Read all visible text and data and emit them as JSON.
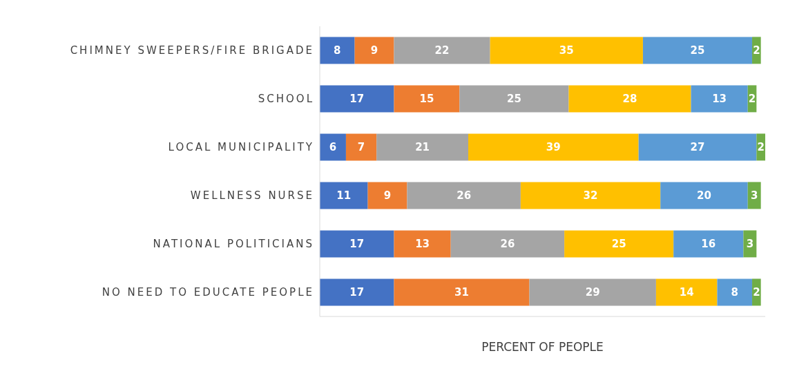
{
  "chart_data": {
    "type": "bar",
    "orientation": "horizontal",
    "stacked": true,
    "data_labels": true,
    "tick_labels": "y",
    "xlabel": "PERCENT OF  PEOPLE",
    "categories": [
      "CHIMNEY SWEEPERS/FIRE BRIGADE",
      "SCHOOL",
      "LOCAL MUNICIPALITY",
      "WELLNESS NURSE",
      "NATIONAL POLITICIANS",
      "NO NEED TO EDUCATE PEOPLE"
    ],
    "series": [
      {
        "color": "#4472c4",
        "values": [
          8,
          17,
          6,
          11,
          17,
          17
        ]
      },
      {
        "color": "#ed7d31",
        "values": [
          9,
          15,
          7,
          9,
          13,
          31
        ]
      },
      {
        "color": "#a5a5a5",
        "values": [
          22,
          25,
          21,
          26,
          26,
          29
        ]
      },
      {
        "color": "#ffc000",
        "values": [
          35,
          28,
          39,
          32,
          25,
          14
        ]
      },
      {
        "color": "#5b9bd5",
        "values": [
          25,
          13,
          27,
          20,
          16,
          8
        ]
      },
      {
        "color": "#70ad47",
        "values": [
          2,
          2,
          2,
          3,
          3,
          2
        ]
      }
    ]
  }
}
